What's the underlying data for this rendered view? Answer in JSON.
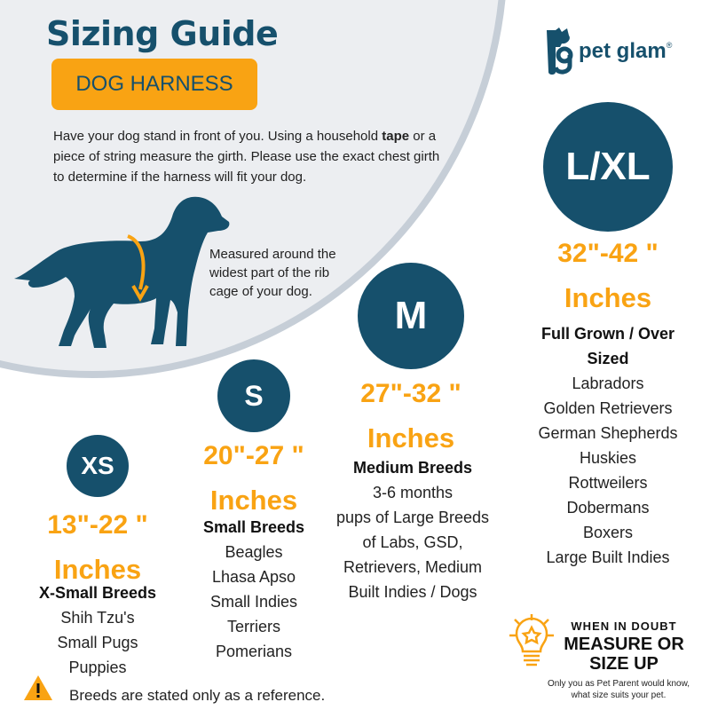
{
  "header": {
    "title": "Sizing Guide",
    "badge": "DOG HARNESS"
  },
  "brand": {
    "name": "pet glam",
    "registered": "®",
    "color": "#16506c"
  },
  "intro": {
    "part1": "Have your dog stand in front of you. Using a household ",
    "bold": "tape",
    "part2": " or a piece of string measure the girth. Please use the exact chest girth to determine if the harness will fit your dog."
  },
  "measured_note": "Measured around the widest part of the rib cage of your dog.",
  "colors": {
    "navy": "#16506c",
    "orange": "#f9a313"
  },
  "sizes": [
    {
      "code": "XS",
      "range": "13\"-22 \"",
      "unit": "Inches",
      "category": "X-Small Breeds",
      "breeds": [
        "Shih Tzu's",
        "Small Pugs",
        "Puppies"
      ]
    },
    {
      "code": "S",
      "range": "20\"-27 \"",
      "unit": "Inches",
      "category": "Small Breeds",
      "breeds": [
        "Beagles",
        "Lhasa Apso",
        "Small Indies",
        "Terriers",
        "Pomerians"
      ]
    },
    {
      "code": "M",
      "range": "27\"-32 \"",
      "unit": "Inches",
      "category": "Medium Breeds",
      "breeds": [
        "3-6 months",
        "pups of Large Breeds",
        "of Labs, GSD,",
        "Retrievers, Medium",
        "Built Indies / Dogs"
      ]
    },
    {
      "code": "L/XL",
      "range": "32\"-42 \"",
      "unit": "Inches",
      "category": "Full Grown / Over Sized",
      "breeds": [
        "Labradors",
        "Golden Retrievers",
        "German Shepherds",
        "Huskies",
        "Rottweilers",
        "Dobermans",
        "Boxers",
        "Large Built Indies"
      ]
    }
  ],
  "tip": {
    "kicker": "WHEN IN DOUBT",
    "headline": "MEASURE OR SIZE UP",
    "note": "Only you as Pet Parent would know, what size suits your pet.",
    "icon": "lightbulb-star-icon"
  },
  "footer": {
    "warning": "Breeds are stated only as a reference.",
    "icon": "warning-icon"
  }
}
